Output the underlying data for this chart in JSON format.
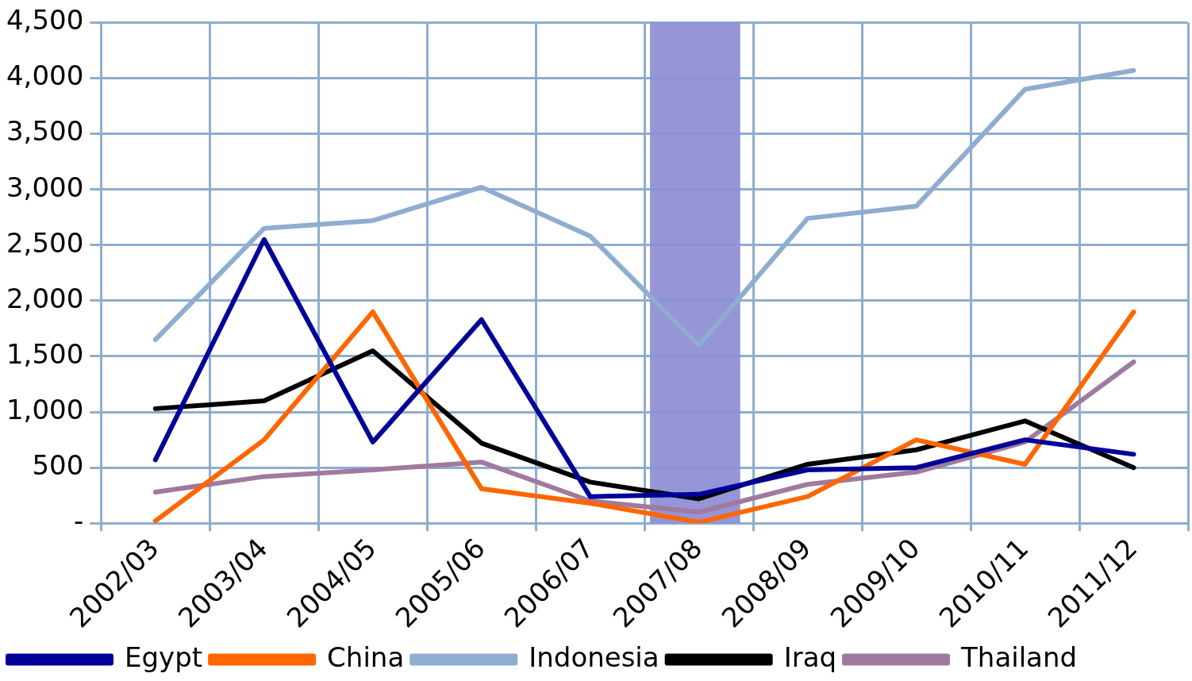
{
  "chart_data": {
    "type": "line",
    "categories": [
      "2002/03",
      "2003/04",
      "2004/05",
      "2005/06",
      "2006/07",
      "2007/08",
      "2008/09",
      "2009/10",
      "2010/11",
      "2011/12"
    ],
    "series": [
      {
        "name": "Egypt",
        "color": "#000099",
        "values": [
          570,
          2550,
          730,
          1830,
          240,
          260,
          480,
          500,
          750,
          620
        ]
      },
      {
        "name": "China",
        "color": "#ff6600",
        "values": [
          20,
          750,
          1900,
          310,
          180,
          10,
          240,
          750,
          530,
          1900
        ]
      },
      {
        "name": "Indonesia",
        "color": "#8eadd0",
        "values": [
          1650,
          2650,
          2720,
          3020,
          2580,
          1600,
          2740,
          2850,
          3900,
          4070
        ]
      },
      {
        "name": "Iraq",
        "color": "#000000",
        "values": [
          1030,
          1100,
          1550,
          720,
          370,
          220,
          530,
          660,
          920,
          500
        ]
      },
      {
        "name": "Thailand",
        "color": "#a07a9e",
        "values": [
          280,
          420,
          480,
          550,
          200,
          100,
          350,
          460,
          730,
          1450
        ]
      }
    ],
    "ylim": [
      0,
      4500
    ],
    "yticks": [
      {
        "value": 0,
        "label": "-"
      },
      {
        "value": 500,
        "label": "500"
      },
      {
        "value": 1000,
        "label": "1,000"
      },
      {
        "value": 1500,
        "label": "1,500"
      },
      {
        "value": 2000,
        "label": "2,000"
      },
      {
        "value": 2500,
        "label": "2,500"
      },
      {
        "value": 3000,
        "label": "3,000"
      },
      {
        "value": 3500,
        "label": "3,500"
      },
      {
        "value": 4000,
        "label": "4,000"
      },
      {
        "value": 4500,
        "label": "4,500"
      }
    ],
    "bands": [
      {
        "axis": "x",
        "from": "2007/08",
        "to": "2007/08",
        "color": "#8f8fd6"
      }
    ],
    "grid": true,
    "legend": "bottom",
    "marker": "none",
    "line_style": "solid"
  }
}
